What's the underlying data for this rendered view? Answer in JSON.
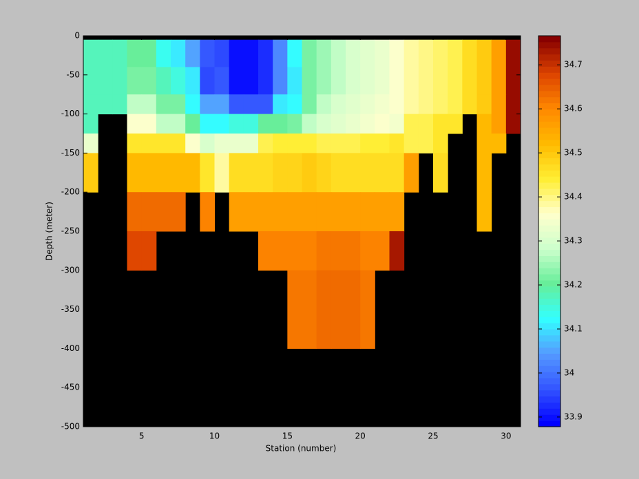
{
  "chart_data": {
    "type": "heatmap",
    "xlabel": "Station (number)",
    "ylabel": "Depth (meter)",
    "x": [
      1,
      2,
      3,
      4,
      5,
      6,
      7,
      8,
      9,
      10,
      11,
      12,
      13,
      14,
      15,
      16,
      17,
      18,
      19,
      20,
      21,
      22,
      23,
      24,
      25,
      26,
      27,
      28,
      29,
      30
    ],
    "y_edges": [
      -5,
      -40,
      -75,
      -100,
      -125,
      -150,
      -200,
      -250,
      -300,
      -400
    ],
    "z": [
      [
        34.17,
        34.17,
        34.17,
        34.2,
        34.2,
        34.14,
        34.1,
        34.05,
        33.97,
        33.95,
        33.9,
        33.9,
        33.93,
        34.02,
        34.12,
        34.22,
        34.25,
        34.28,
        34.3,
        34.32,
        34.33,
        34.35,
        34.38,
        34.4,
        34.41,
        34.43,
        34.47,
        34.5,
        34.56,
        34.75
      ],
      [
        34.17,
        34.17,
        34.17,
        34.22,
        34.22,
        34.17,
        34.15,
        34.1,
        33.95,
        33.97,
        33.9,
        33.9,
        33.93,
        34.02,
        34.1,
        34.22,
        34.25,
        34.28,
        34.3,
        34.32,
        34.33,
        34.35,
        34.38,
        34.4,
        34.41,
        34.43,
        34.47,
        34.5,
        34.56,
        34.75
      ],
      [
        34.17,
        34.17,
        34.17,
        34.27,
        34.27,
        34.22,
        34.22,
        34.12,
        34.05,
        34.05,
        33.97,
        33.97,
        33.97,
        34.1,
        34.12,
        34.22,
        34.27,
        34.3,
        34.32,
        34.33,
        34.34,
        34.36,
        34.38,
        34.4,
        34.41,
        34.43,
        34.47,
        34.5,
        34.56,
        34.75
      ],
      [
        34.17,
        null,
        null,
        34.35,
        34.35,
        34.27,
        34.27,
        34.2,
        34.12,
        34.12,
        34.15,
        34.15,
        34.2,
        34.2,
        34.22,
        34.27,
        34.3,
        34.32,
        34.33,
        34.34,
        34.36,
        34.34,
        34.42,
        34.43,
        34.45,
        34.45,
        null,
        34.52,
        34.56,
        34.75
      ],
      [
        34.33,
        null,
        null,
        34.45,
        34.45,
        34.45,
        34.45,
        34.35,
        34.3,
        34.33,
        34.33,
        34.33,
        34.43,
        34.44,
        34.44,
        34.44,
        34.43,
        34.43,
        34.43,
        34.44,
        34.44,
        34.45,
        34.42,
        34.43,
        34.45,
        null,
        null,
        34.52,
        34.52,
        null
      ],
      [
        34.5,
        null,
        null,
        34.52,
        34.52,
        34.53,
        34.53,
        34.52,
        34.45,
        34.38,
        34.47,
        34.47,
        34.47,
        34.48,
        34.48,
        34.49,
        34.48,
        34.47,
        34.47,
        34.47,
        34.47,
        34.47,
        34.56,
        null,
        34.47,
        null,
        null,
        34.52,
        null,
        null
      ],
      [
        null,
        null,
        null,
        34.63,
        34.63,
        34.64,
        34.64,
        null,
        34.6,
        null,
        34.57,
        34.57,
        34.57,
        34.56,
        34.56,
        34.56,
        34.57,
        34.57,
        34.56,
        34.57,
        34.57,
        34.57,
        null,
        null,
        null,
        null,
        null,
        34.52,
        null,
        null
      ],
      [
        null,
        null,
        null,
        34.68,
        34.68,
        null,
        null,
        null,
        null,
        null,
        null,
        null,
        34.6,
        34.6,
        34.6,
        34.61,
        34.62,
        34.62,
        34.62,
        34.61,
        34.6,
        34.73,
        null,
        null,
        null,
        null,
        null,
        null,
        null,
        null
      ],
      [
        null,
        null,
        null,
        null,
        null,
        null,
        null,
        null,
        null,
        null,
        null,
        null,
        null,
        null,
        34.62,
        34.62,
        34.63,
        34.64,
        34.63,
        34.62,
        null,
        null,
        null,
        null,
        null,
        null,
        null,
        null,
        null,
        null
      ]
    ],
    "xlim": [
      1,
      31
    ],
    "xticks": [
      5,
      10,
      15,
      20,
      25,
      30
    ],
    "ylim": [
      -500,
      0
    ],
    "yticks": [
      0,
      -50,
      -100,
      -150,
      -200,
      -250,
      -300,
      -350,
      -400,
      -450,
      -500
    ],
    "clim": [
      33.878,
      34.766
    ],
    "cticks": [
      33.9,
      34,
      34.1,
      34.2,
      34.3,
      34.4,
      34.5,
      34.6,
      34.7
    ],
    "colormap": [
      "#0000ff",
      "#3355ff",
      "#5599ff",
      "#33ffff",
      "#66ee99",
      "#ccffcc",
      "#ffffcc",
      "#ffee33",
      "#ffbb00",
      "#ff8800",
      "#dd4400",
      "#880000"
    ],
    "colormap_levels": 64,
    "background": "#000000"
  }
}
